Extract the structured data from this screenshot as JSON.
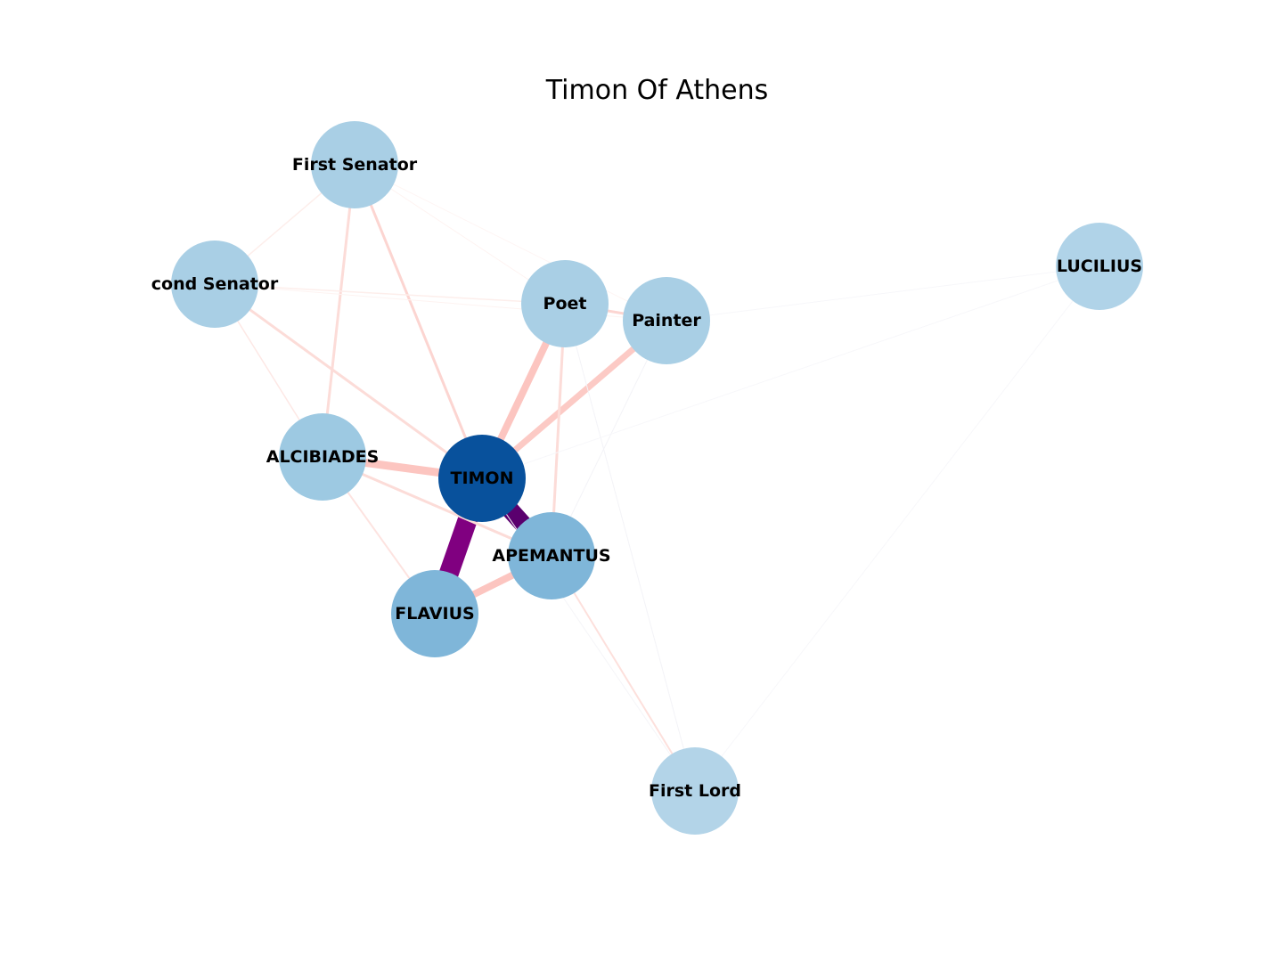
{
  "title": "Timon Of Athens",
  "nodes": [
    {
      "id": "first_senator",
      "label": "First Senator",
      "color": "#a9cfe5"
    },
    {
      "id": "second_senator",
      "label": "cond Senator",
      "color": "#a9cfe5"
    },
    {
      "id": "poet",
      "label": "Poet",
      "color": "#a9cfe5"
    },
    {
      "id": "painter",
      "label": "Painter",
      "color": "#a9cfe5"
    },
    {
      "id": "lucilius",
      "label": "LUCILIUS",
      "color": "#b0d3e8"
    },
    {
      "id": "alcibiades",
      "label": "ALCIBIADES",
      "color": "#9dc9e2"
    },
    {
      "id": "timon",
      "label": "TIMON",
      "color": "#08519c"
    },
    {
      "id": "apemantus",
      "label": "APEMANTUS",
      "color": "#7fb6d9"
    },
    {
      "id": "flavius",
      "label": "FLAVIUS",
      "color": "#7fb6d9"
    },
    {
      "id": "first_lord",
      "label": "First Lord",
      "color": "#b3d4e8"
    }
  ],
  "edges": [
    {
      "source": "timon",
      "target": "flavius",
      "weight": 22,
      "color": "#800080"
    },
    {
      "source": "timon",
      "target": "apemantus",
      "weight": 20,
      "color": "#5a006e"
    },
    {
      "source": "timon",
      "target": "alcibiades",
      "weight": 9,
      "color": "#fcc5c0"
    },
    {
      "source": "timon",
      "target": "poet",
      "weight": 8,
      "color": "#fcc5c0"
    },
    {
      "source": "timon",
      "target": "painter",
      "weight": 7,
      "color": "#fccac5"
    },
    {
      "source": "apemantus",
      "target": "flavius",
      "weight": 8,
      "color": "#fcc5c0"
    },
    {
      "source": "timon",
      "target": "first_senator",
      "weight": 3,
      "color": "#fcd5d1"
    },
    {
      "source": "timon",
      "target": "second_senator",
      "weight": 3,
      "color": "#fcdcd8"
    },
    {
      "source": "apemantus",
      "target": "poet",
      "weight": 3,
      "color": "#fcdcd8"
    },
    {
      "source": "alcibiades",
      "target": "first_senator",
      "weight": 3,
      "color": "#fcdcd8"
    },
    {
      "source": "alcibiades",
      "target": "apemantus",
      "weight": 3,
      "color": "#fcdcd8"
    },
    {
      "source": "alcibiades",
      "target": "flavius",
      "weight": 2,
      "color": "#fde3e0"
    },
    {
      "source": "apemantus",
      "target": "first_lord",
      "weight": 2,
      "color": "#fde0dc"
    },
    {
      "source": "alcibiades",
      "target": "second_senator",
      "weight": 1.5,
      "color": "#fde8e5"
    },
    {
      "source": "first_senator",
      "target": "second_senator",
      "weight": 1.5,
      "color": "#fdeeeb"
    },
    {
      "source": "second_senator",
      "target": "poet",
      "weight": 1.5,
      "color": "#fdeeeb"
    },
    {
      "source": "second_senator",
      "target": "painter",
      "weight": 1,
      "color": "#fef3f1"
    },
    {
      "source": "first_senator",
      "target": "poet",
      "weight": 1,
      "color": "#fef3f1"
    },
    {
      "source": "first_senator",
      "target": "painter",
      "weight": 1,
      "color": "#fef5f3"
    },
    {
      "source": "poet",
      "target": "painter",
      "weight": 3,
      "color": "#fcd5d1"
    },
    {
      "source": "poet",
      "target": "first_lord",
      "weight": 1,
      "color": "#f3f3f7"
    },
    {
      "source": "painter",
      "target": "apemantus",
      "weight": 1,
      "color": "#f3f3f7"
    },
    {
      "source": "painter",
      "target": "lucilius",
      "weight": 1,
      "color": "#f7f7fa"
    },
    {
      "source": "timon",
      "target": "lucilius",
      "weight": 1,
      "color": "#f7f7fa"
    },
    {
      "source": "first_lord",
      "target": "lucilius",
      "weight": 1,
      "color": "#f7f7fa"
    },
    {
      "source": "timon",
      "target": "first_lord",
      "weight": 1,
      "color": "#f5f5f8"
    }
  ]
}
